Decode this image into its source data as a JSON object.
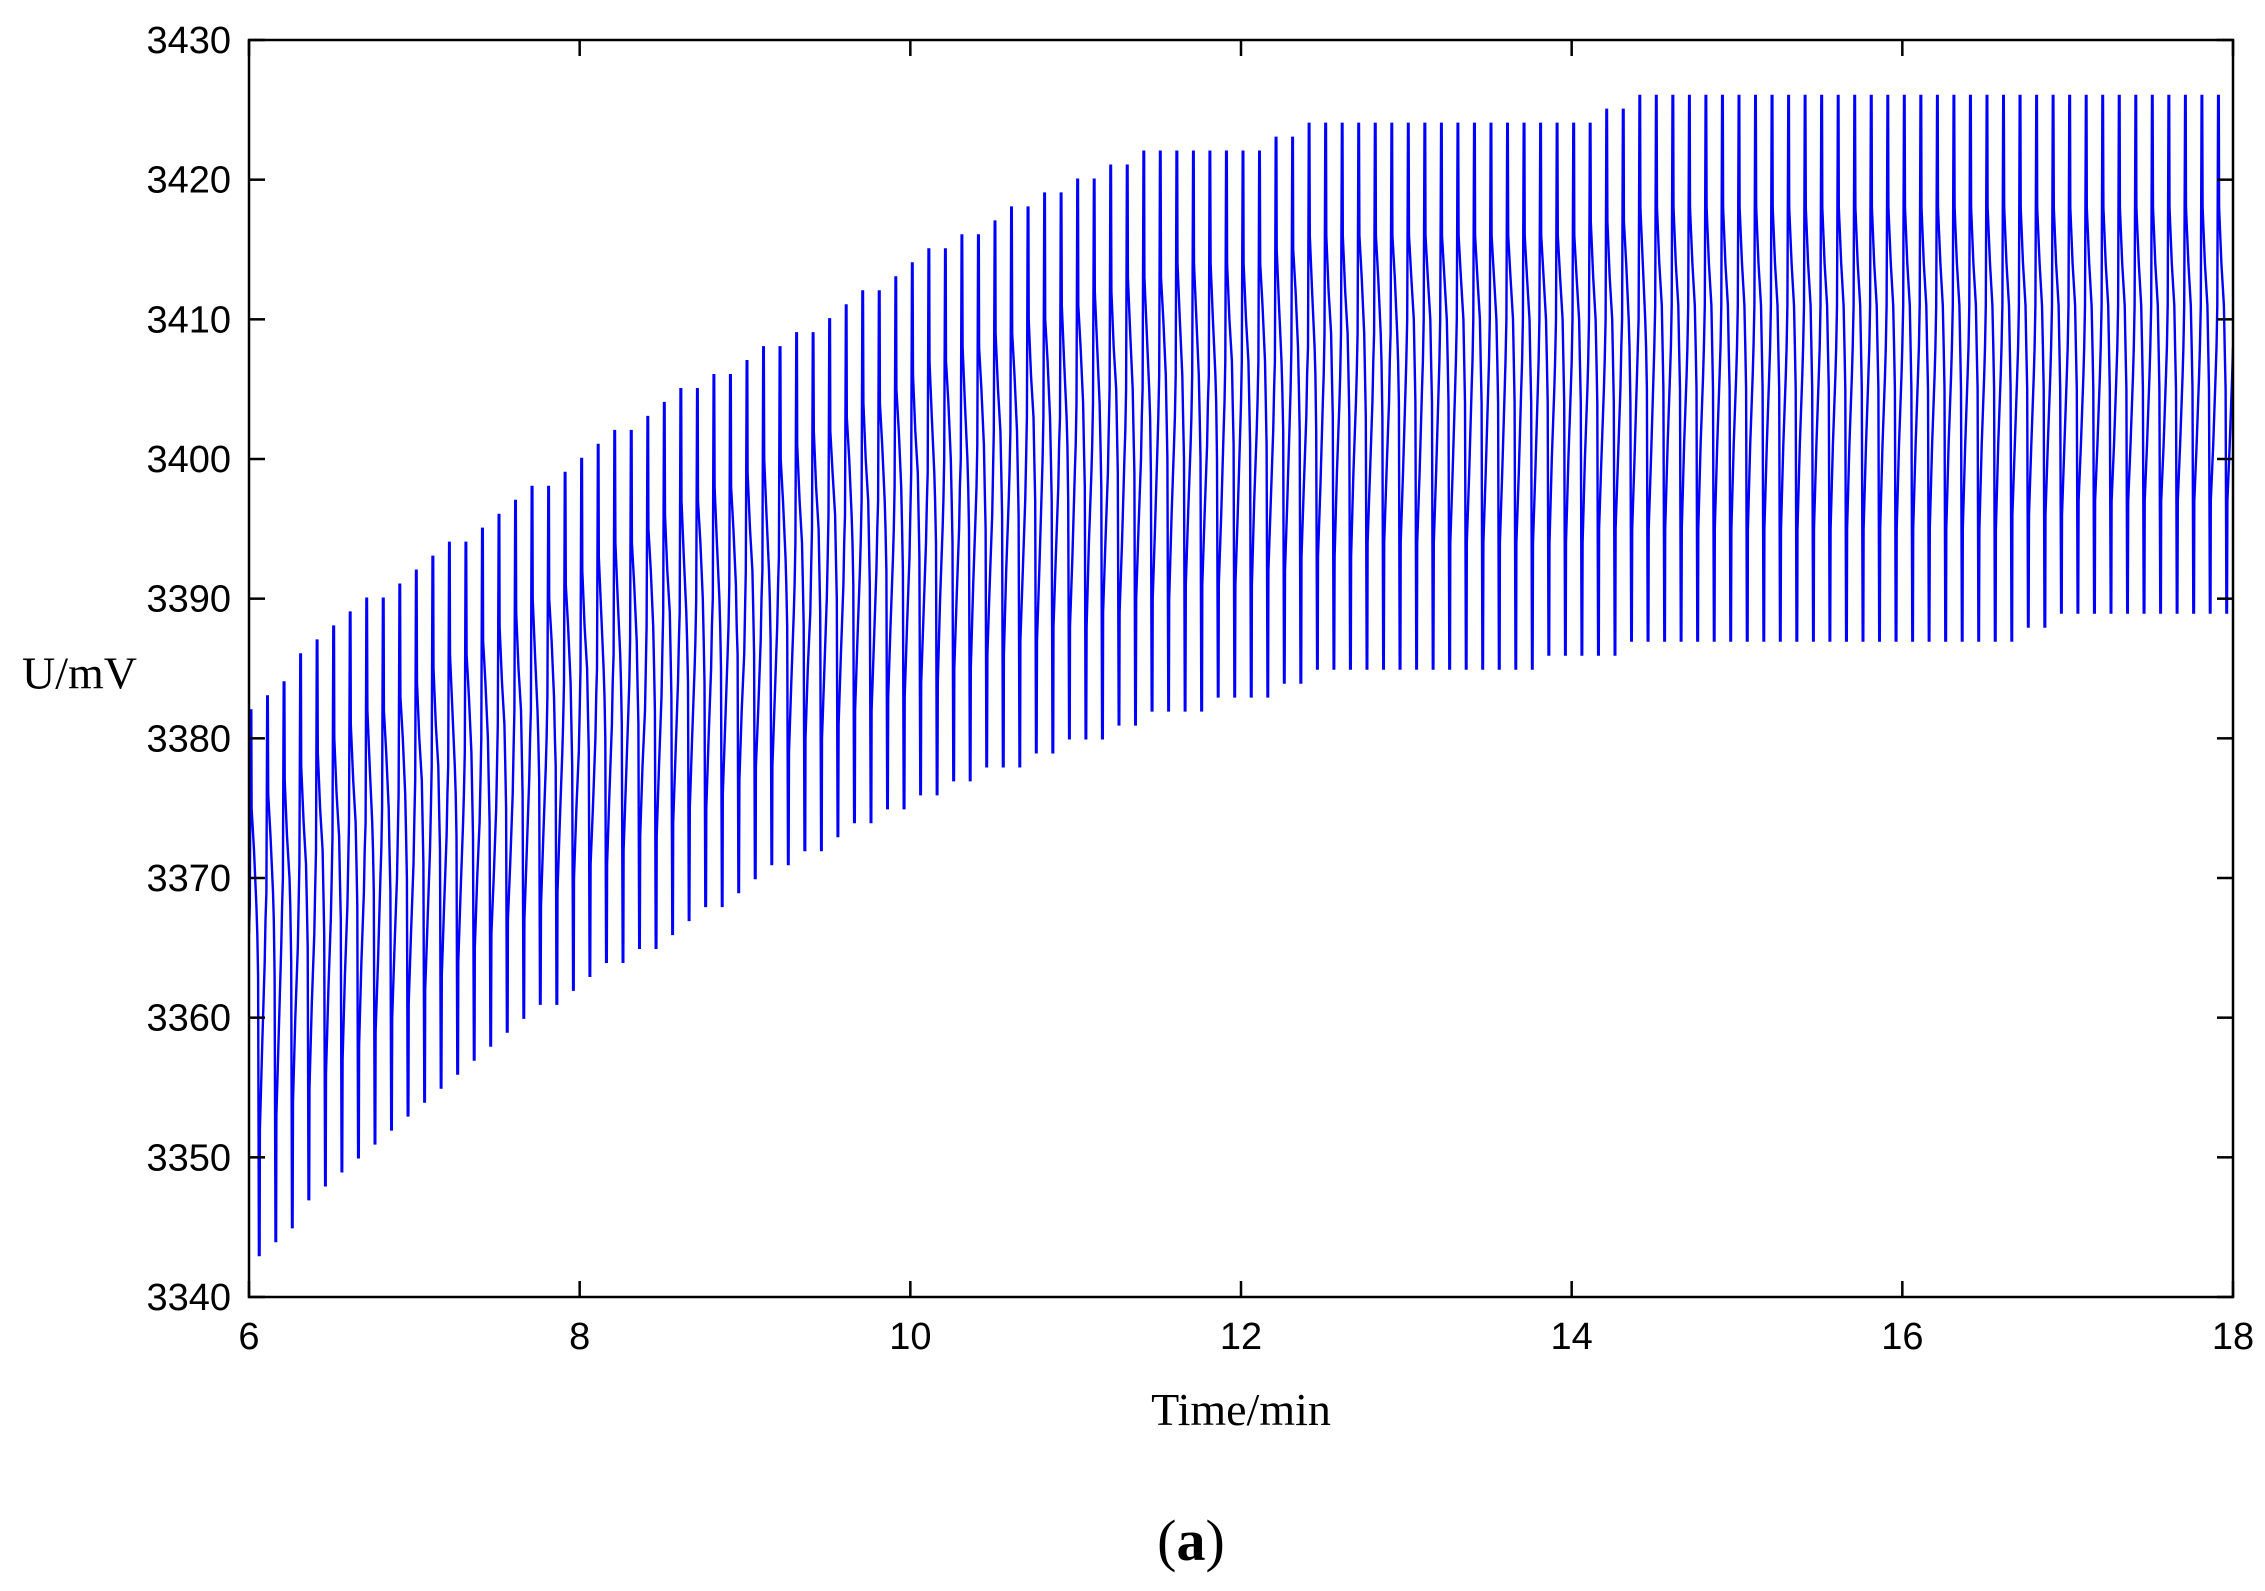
{
  "panel_label": {
    "open": "(",
    "letter": "a",
    "close": ")"
  },
  "chart_data": {
    "type": "line",
    "title": "",
    "xlabel": "Time/min",
    "ylabel": "U/mV",
    "xlim": [
      6,
      18
    ],
    "ylim": [
      3340,
      3430
    ],
    "xticks": [
      6,
      8,
      10,
      12,
      14,
      16,
      18
    ],
    "yticks": [
      3340,
      3350,
      3360,
      3370,
      3380,
      3390,
      3400,
      3410,
      3420,
      3430
    ],
    "grid": false,
    "legend": "none",
    "line_color": "#0000ff",
    "series": [
      {
        "pulse_period_min": 0.1,
        "envelope": {
          "x": [
            6.0,
            6.5,
            7.0,
            7.5,
            8.0,
            8.5,
            9.0,
            9.5,
            10.0,
            10.5,
            11.0,
            11.5,
            12.0,
            12.5,
            13.0,
            13.5,
            14.0,
            14.5,
            15.0,
            15.5,
            16.0,
            16.5,
            17.0,
            17.5,
            18.0
          ],
          "upper": [
            3382,
            3388,
            3392,
            3396,
            3400,
            3404,
            3407,
            3410,
            3414,
            3417,
            3420,
            3422,
            3422,
            3424,
            3424,
            3424,
            3424,
            3426,
            3426,
            3426,
            3426,
            3426,
            3426,
            3426,
            3426
          ],
          "mean": [
            3366,
            3370,
            3374,
            3378,
            3382,
            3386,
            3389,
            3393,
            3396,
            3399,
            3401,
            3403,
            3404,
            3406,
            3407,
            3407,
            3407,
            3408,
            3408,
            3408,
            3408,
            3408,
            3408,
            3408,
            3408
          ],
          "lower": [
            3343,
            3349,
            3354,
            3359,
            3363,
            3366,
            3370,
            3373,
            3376,
            3378,
            3380,
            3382,
            3383,
            3385,
            3385,
            3385,
            3386,
            3387,
            3387,
            3387,
            3387,
            3387,
            3389,
            3389,
            3389
          ]
        }
      }
    ]
  }
}
